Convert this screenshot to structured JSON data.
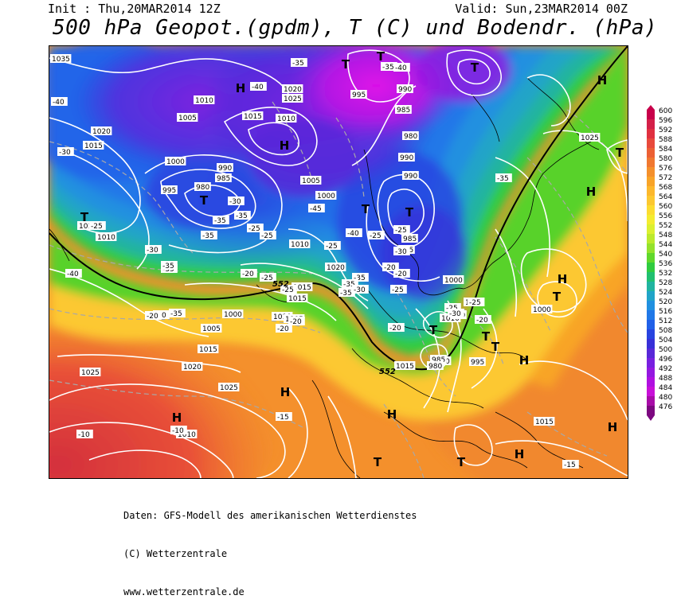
{
  "header": {
    "init": "Init : Thu,20MAR2014 12Z",
    "valid": "Valid: Sun,23MAR2014 00Z",
    "title": "500 hPa Geopot.(gpdm), T (C) und Bodendr. (hPa)"
  },
  "footer": {
    "line1": "Daten: GFS-Modell des amerikanischen Wetterdienstes",
    "line2": "(C) Wetterzentrale",
    "line3": "www.wetterzentrale.de"
  },
  "legend": {
    "levels": [
      "600",
      "596",
      "592",
      "588",
      "584",
      "580",
      "576",
      "572",
      "568",
      "564",
      "560",
      "556",
      "552",
      "548",
      "544",
      "540",
      "536",
      "532",
      "528",
      "524",
      "520",
      "516",
      "512",
      "508",
      "504",
      "500",
      "496",
      "492",
      "488",
      "484",
      "480",
      "476"
    ],
    "colors": [
      "#c8004a",
      "#d42048",
      "#e03040",
      "#e84a3c",
      "#ec6034",
      "#f07830",
      "#f4902c",
      "#f8a428",
      "#fcb82c",
      "#fcc830",
      "#fcdc30",
      "#f4ec30",
      "#dcf030",
      "#bcea2c",
      "#94e22c",
      "#60d82c",
      "#30cc40",
      "#20c070",
      "#20b4a0",
      "#20a4c8",
      "#2090e0",
      "#2078e8",
      "#2060e8",
      "#2844e0",
      "#3830d8",
      "#5828d8",
      "#7820e0",
      "#9418e0",
      "#b010e0",
      "#c810d8",
      "#a80ca8",
      "#7c0880"
    ]
  },
  "map": {
    "highs": [
      "H",
      "H",
      "H",
      "H",
      "H",
      "H",
      "H",
      "H",
      "H",
      "H",
      "H"
    ],
    "lows": [
      "T",
      "T",
      "T",
      "T",
      "T",
      "T",
      "T",
      "T",
      "T",
      "T",
      "T",
      "T",
      "T",
      "T"
    ],
    "pressure_labels": [
      "1035",
      "1020",
      "1015",
      "1010",
      "1005",
      "1000",
      "995",
      "990",
      "985",
      "980",
      "1015",
      "1020",
      "1025",
      "1010",
      "1005",
      "1000",
      "995",
      "990",
      "985",
      "980",
      "990",
      "990",
      "985",
      "995",
      "1000",
      "1005",
      "1010",
      "1015",
      "1020",
      "1025",
      "1025",
      "1020",
      "1015",
      "1010",
      "1005",
      "1000",
      "1010",
      "1015",
      "1005",
      "1010",
      "1015",
      "1020",
      "1025",
      "1010",
      "1010",
      "1015",
      "1000",
      "995",
      "990",
      "985",
      "980"
    ],
    "temp_labels": [
      "-40",
      "-35",
      "-40",
      "-35",
      "-40",
      "-45",
      "-40",
      "-35",
      "-35",
      "-30",
      "-35",
      "-30",
      "-25",
      "-25",
      "-30",
      "-25",
      "-20",
      "-25",
      "-20",
      "-20",
      "-25",
      "-25",
      "-25",
      "-30",
      "-35",
      "-35",
      "-25",
      "-20",
      "-20",
      "-20",
      "-15",
      "-15",
      "-10",
      "-10",
      "-25",
      "-20",
      "-25",
      "-30",
      "-35",
      "-35",
      "-35",
      "-25",
      "-20",
      "-20",
      "-40",
      "-35",
      "-30",
      "-35"
    ],
    "label_552": [
      "552",
      "552"
    ]
  }
}
